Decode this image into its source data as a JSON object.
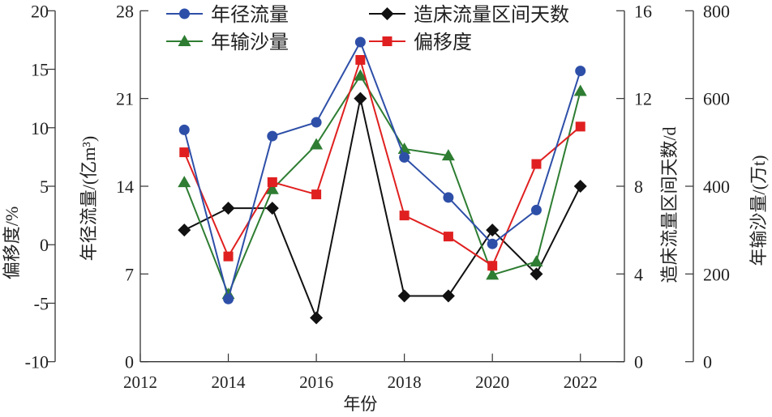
{
  "chart_data": {
    "type": "line",
    "xlabel": "年份",
    "x": [
      2013,
      2014,
      2015,
      2016,
      2017,
      2018,
      2019,
      2020,
      2021,
      2022
    ],
    "xticks": [
      "2012",
      "2014",
      "2016",
      "2018",
      "2020",
      "2022"
    ],
    "xlim": [
      2012,
      2023
    ],
    "axes": [
      {
        "id": "shift",
        "label": "偏移度/%",
        "ylim": [
          -10,
          20
        ],
        "ticks": [
          "-10",
          "-5",
          "0",
          "5",
          "10",
          "15",
          "20"
        ],
        "side": "left-outer"
      },
      {
        "id": "runoff",
        "label": "年径流量/(亿m³)",
        "ylim": [
          0,
          28
        ],
        "ticks": [
          "0",
          "7",
          "14",
          "21",
          "28"
        ],
        "side": "left"
      },
      {
        "id": "days",
        "label": "造床流量区间天数/d",
        "ylim": [
          0,
          16
        ],
        "ticks": [
          "0",
          "4",
          "8",
          "12",
          "16"
        ],
        "side": "right"
      },
      {
        "id": "sediment",
        "label": "年输沙量/(万t)",
        "ylim": [
          0,
          800
        ],
        "ticks": [
          "0",
          "200",
          "400",
          "600",
          "800"
        ],
        "side": "right-outer"
      }
    ],
    "series": [
      {
        "name": "年径流量",
        "axis": "runoff",
        "color": "#2e4fa8",
        "marker": "circle",
        "values": [
          18.5,
          5.0,
          18.0,
          19.1,
          25.5,
          16.3,
          13.1,
          9.4,
          12.1,
          23.2
        ]
      },
      {
        "name": "年输沙量",
        "axis": "sediment",
        "color": "#2e7d32",
        "marker": "triangle",
        "values": [
          409,
          154,
          393,
          495,
          652,
          485,
          470,
          198,
          228,
          617
        ]
      },
      {
        "name": "造床流量区间天数",
        "axis": "days",
        "color": "#111111",
        "marker": "diamond",
        "values": [
          6,
          7,
          7,
          2,
          12,
          3,
          3,
          6,
          4,
          8
        ]
      },
      {
        "name": "偏移度",
        "axis": "shift",
        "color": "#e02020",
        "marker": "square",
        "values": [
          7.9,
          -1.0,
          5.35,
          4.3,
          15.8,
          2.5,
          0.7,
          -1.8,
          6.9,
          10.1
        ]
      }
    ],
    "legend": "top-center",
    "grid": false
  }
}
